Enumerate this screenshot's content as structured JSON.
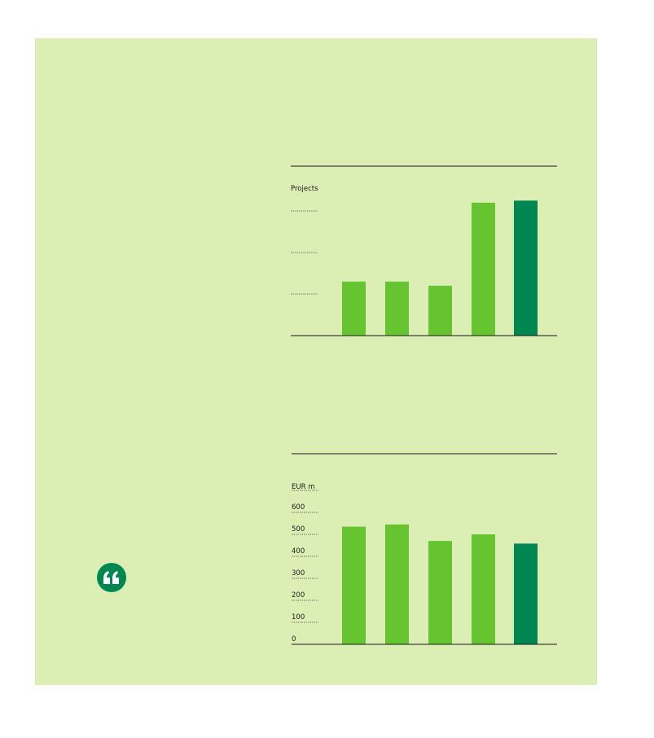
{
  "colors": {
    "panel_background": "#dbefb5",
    "bar_light": "#66c430",
    "bar_highlight": "#008751",
    "rule": "#1a1a1a",
    "text": "#1a1a1a",
    "grid_dash": "#555555"
  },
  "quote_icon": "left-double-quote-icon",
  "chart_data": [
    {
      "type": "bar",
      "ylabel": "Projects",
      "tick_labels": [],
      "grid": "dashed stubs on left",
      "values": [
        13,
        13,
        12,
        32,
        32.5
      ],
      "highlight_index": 4,
      "ylim": [
        0,
        40
      ]
    },
    {
      "type": "bar",
      "ylabel": "EUR m",
      "tick_labels": [
        "0",
        "100",
        "200",
        "300",
        "400",
        "500",
        "600"
      ],
      "grid": "dashed stubs on left",
      "values": [
        535,
        545,
        470,
        500,
        458
      ],
      "highlight_index": 4,
      "ylim": [
        0,
        700
      ]
    }
  ]
}
